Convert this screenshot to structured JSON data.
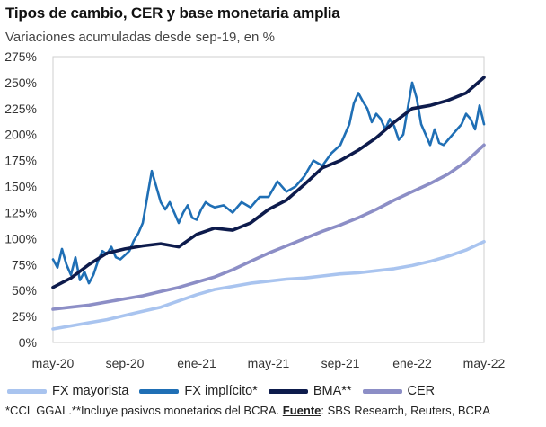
{
  "header": {
    "title": "Tipos de cambio, CER y base monetaria amplia",
    "subtitle": "Variaciones acumuladas desde sep-19, en %"
  },
  "footnote": {
    "text": "*CCL GGAL.**Incluye pasivos monetarios del BCRA. ",
    "source_label": "Fuente",
    "source_text": ": SBS Research, Reuters, BCRA"
  },
  "chart_data": {
    "type": "line",
    "title": "Tipos de cambio, CER y base monetaria amplia",
    "subtitle": "Variaciones acumuladas desde sep-19, en %",
    "xlabel": "",
    "ylabel": "",
    "x_tick_labels": [
      "may-20",
      "sep-20",
      "ene-21",
      "may-21",
      "sep-21",
      "ene-22",
      "may-22"
    ],
    "y_ticks": [
      0,
      25,
      50,
      75,
      100,
      125,
      150,
      175,
      200,
      225,
      250,
      275
    ],
    "y_tick_labels": [
      "0%",
      "25%",
      "50%",
      "75%",
      "100%",
      "125%",
      "150%",
      "175%",
      "200%",
      "225%",
      "250%",
      "275%"
    ],
    "ylim": [
      0,
      275
    ],
    "x_unit": "months since may-20",
    "xlim": [
      0,
      24
    ],
    "grid": false,
    "legend_position": "bottom",
    "series": [
      {
        "name": "FX mayorista",
        "color": "#a9c4ef",
        "x": [
          0,
          1,
          2,
          3,
          4,
          5,
          6,
          7,
          8,
          9,
          10,
          11,
          12,
          13,
          14,
          15,
          16,
          17,
          18,
          19,
          20,
          21,
          22,
          23,
          24
        ],
        "y": [
          13,
          16,
          19,
          22,
          26,
          30,
          34,
          40,
          46,
          51,
          54,
          57,
          59,
          61,
          62,
          64,
          66,
          67,
          69,
          71,
          74,
          78,
          83,
          89,
          97
        ]
      },
      {
        "name": "FX implícito*",
        "color": "#1f6fb5",
        "x": [
          0,
          0.25,
          0.5,
          0.75,
          1,
          1.25,
          1.5,
          1.75,
          2,
          2.25,
          2.5,
          2.75,
          3,
          3.25,
          3.5,
          3.75,
          4,
          4.25,
          4.5,
          4.75,
          5,
          5.25,
          5.5,
          5.75,
          6,
          6.25,
          6.5,
          6.75,
          7,
          7.25,
          7.5,
          7.75,
          8,
          8.25,
          8.5,
          8.75,
          9,
          9.5,
          10,
          10.5,
          11,
          11.5,
          12,
          12.5,
          13,
          13.5,
          14,
          14.5,
          15,
          15.5,
          16,
          16.25,
          16.5,
          16.75,
          17,
          17.25,
          17.5,
          17.75,
          18,
          18.25,
          18.5,
          18.75,
          19,
          19.25,
          19.5,
          19.75,
          20,
          20.25,
          20.5,
          20.75,
          21,
          21.25,
          21.5,
          21.75,
          22,
          22.25,
          22.5,
          22.75,
          23,
          23.25,
          23.5,
          23.75,
          24
        ],
        "y": [
          80,
          72,
          90,
          75,
          65,
          82,
          60,
          68,
          57,
          65,
          78,
          88,
          85,
          92,
          82,
          80,
          84,
          88,
          98,
          105,
          115,
          140,
          165,
          150,
          135,
          128,
          135,
          125,
          115,
          125,
          132,
          120,
          118,
          128,
          135,
          132,
          130,
          132,
          125,
          135,
          130,
          140,
          140,
          155,
          145,
          150,
          160,
          175,
          170,
          182,
          190,
          200,
          210,
          230,
          240,
          232,
          225,
          212,
          220,
          215,
          205,
          215,
          208,
          195,
          200,
          225,
          250,
          235,
          210,
          200,
          190,
          205,
          192,
          190,
          195,
          200,
          205,
          210,
          220,
          215,
          205,
          228,
          210
        ]
      },
      {
        "name": "BMA**",
        "color": "#0d1b4c",
        "x": [
          0,
          1,
          2,
          3,
          4,
          5,
          6,
          7,
          8,
          9,
          10,
          11,
          12,
          13,
          14,
          15,
          16,
          17,
          18,
          19,
          20,
          21,
          22,
          23,
          24
        ],
        "y": [
          53,
          62,
          75,
          86,
          90,
          93,
          95,
          92,
          104,
          110,
          108,
          115,
          128,
          137,
          152,
          168,
          175,
          185,
          197,
          212,
          225,
          228,
          233,
          240,
          255
        ]
      },
      {
        "name": "CER",
        "color": "#8c8ec6",
        "x": [
          0,
          1,
          2,
          3,
          4,
          5,
          6,
          7,
          8,
          9,
          10,
          11,
          12,
          13,
          14,
          15,
          16,
          17,
          18,
          19,
          20,
          21,
          22,
          23,
          24
        ],
        "y": [
          32,
          34,
          36,
          39,
          42,
          45,
          49,
          53,
          58,
          63,
          70,
          78,
          86,
          93,
          100,
          107,
          113,
          120,
          128,
          137,
          145,
          153,
          162,
          174,
          190
        ]
      }
    ]
  }
}
